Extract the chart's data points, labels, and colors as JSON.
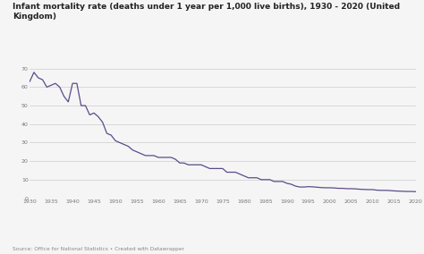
{
  "title_line1": "Infant mortality rate (deaths under 1 year per 1,000 live births), 1930 - 2020 (United",
  "title_line2": "Kingdom)",
  "source": "Source: Office for National Statistics • Created with Datawrapper",
  "line_color": "#5c4b8a",
  "background_color": "#f5f5f5",
  "xlim": [
    1930,
    2020
  ],
  "ylim": [
    0,
    70
  ],
  "yticks": [
    0,
    10,
    20,
    30,
    40,
    50,
    60,
    70
  ],
  "xticks": [
    1930,
    1935,
    1940,
    1945,
    1950,
    1955,
    1960,
    1965,
    1970,
    1975,
    1980,
    1985,
    1990,
    1995,
    2000,
    2005,
    2010,
    2015,
    2020
  ],
  "years": [
    1930,
    1931,
    1932,
    1933,
    1934,
    1935,
    1936,
    1937,
    1938,
    1939,
    1940,
    1941,
    1942,
    1943,
    1944,
    1945,
    1946,
    1947,
    1948,
    1949,
    1950,
    1951,
    1952,
    1953,
    1954,
    1955,
    1956,
    1957,
    1958,
    1959,
    1960,
    1961,
    1962,
    1963,
    1964,
    1965,
    1966,
    1967,
    1968,
    1969,
    1970,
    1971,
    1972,
    1973,
    1974,
    1975,
    1976,
    1977,
    1978,
    1979,
    1980,
    1981,
    1982,
    1983,
    1984,
    1985,
    1986,
    1987,
    1988,
    1989,
    1990,
    1991,
    1992,
    1993,
    1994,
    1995,
    1996,
    1997,
    1998,
    1999,
    2000,
    2001,
    2002,
    2003,
    2004,
    2005,
    2006,
    2007,
    2008,
    2009,
    2010,
    2011,
    2012,
    2013,
    2014,
    2015,
    2016,
    2017,
    2018,
    2019,
    2020
  ],
  "values": [
    63,
    68,
    65,
    64,
    60,
    61,
    62,
    60,
    55,
    52,
    62,
    62,
    50,
    50,
    45,
    46,
    44,
    41,
    35,
    34,
    31,
    30,
    29,
    28,
    26,
    25,
    24,
    23,
    23,
    23,
    22,
    22,
    22,
    22,
    21,
    19,
    19,
    18,
    18,
    18,
    18,
    17,
    16,
    16,
    16,
    16,
    14,
    14,
    14,
    13,
    12,
    11,
    11,
    11,
    10,
    10,
    10,
    9,
    9,
    9,
    8,
    7.5,
    6.5,
    6,
    6,
    6.2,
    6.1,
    5.9,
    5.7,
    5.6,
    5.6,
    5.5,
    5.3,
    5.3,
    5.1,
    5.1,
    5.0,
    4.8,
    4.7,
    4.6,
    4.6,
    4.3,
    4.2,
    4.2,
    4.1,
    3.9,
    3.8,
    3.7,
    3.6,
    3.6,
    3.5
  ]
}
